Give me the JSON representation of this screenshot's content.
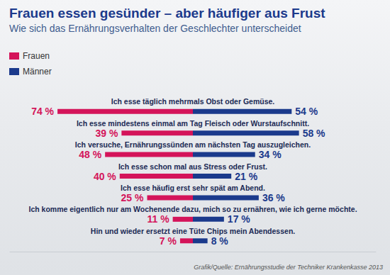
{
  "chart_data": {
    "type": "bar",
    "orientation": "horizontal",
    "title": "Frauen essen gesünder – aber häufiger aus Frust",
    "subtitle": "Wie sich das Ernährungsverhalten der Geschlechter unterscheidet",
    "source": "Grafik/Quelle: Ernährungsstudie der Techniker Krankenkasse 2013",
    "categories": [
      "Ich esse täglich mehrmals Obst oder Gemüse.",
      "Ich esse mindestens einmal am Tag Fleisch oder Wurstaufschnitt.",
      "Ich versuche, Ernährungssünden am nächsten Tag auszugleichen.",
      "Ich esse schon mal aus Stress oder Frust.",
      "Ich esse häufig erst sehr spät am Abend.",
      "Ich komme eigentlich nur am Wochenende dazu, mich so zu ernähren, wie ich gerne möchte.",
      "Hin und wieder ersetzt eine Tüte Chips mein Abendessen."
    ],
    "series": [
      {
        "name": "Frauen",
        "color": "#d4145a",
        "values": [
          74,
          39,
          48,
          40,
          25,
          11,
          7
        ],
        "value_labels": [
          "74 %",
          "39 %",
          "48 %",
          "40 %",
          "25 %",
          "11 %",
          "7 %"
        ]
      },
      {
        "name": "Männer",
        "color": "#1b3a8c",
        "values": [
          54,
          58,
          34,
          21,
          36,
          17,
          8
        ],
        "value_labels": [
          "54 %",
          "58 %",
          "34 %",
          "21 %",
          "36 %",
          "17 %",
          "8 %"
        ]
      }
    ],
    "xlim": [
      0,
      100
    ],
    "legend": "upper left",
    "data_labels": true,
    "tick_labels": false,
    "grid": false
  }
}
